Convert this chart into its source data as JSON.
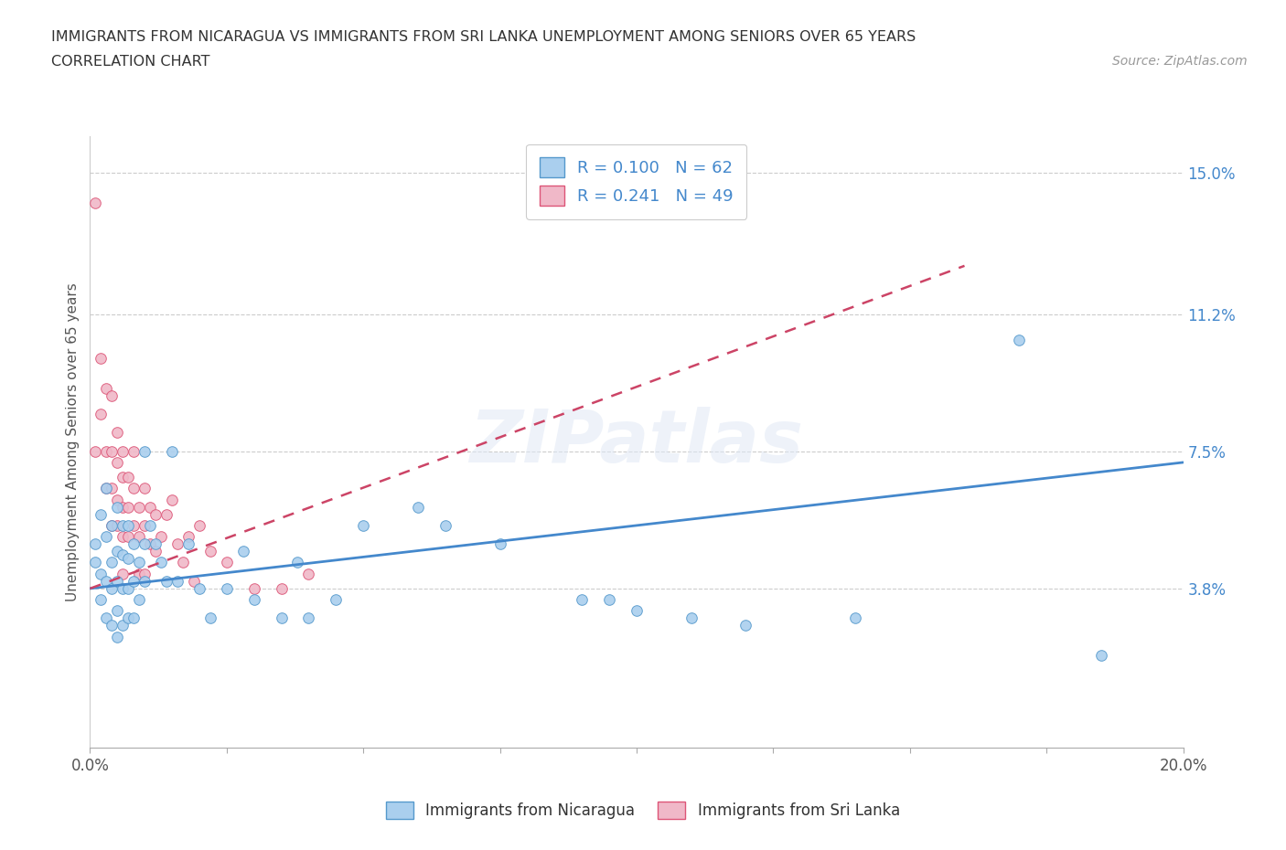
{
  "title_line1": "IMMIGRANTS FROM NICARAGUA VS IMMIGRANTS FROM SRI LANKA UNEMPLOYMENT AMONG SENIORS OVER 65 YEARS",
  "title_line2": "CORRELATION CHART",
  "source_text": "Source: ZipAtlas.com",
  "ylabel": "Unemployment Among Seniors over 65 years",
  "xlim": [
    0.0,
    0.2
  ],
  "ylim": [
    -0.005,
    0.16
  ],
  "yticks": [
    0.0,
    0.038,
    0.075,
    0.112,
    0.15
  ],
  "ytick_labels": [
    "",
    "3.8%",
    "7.5%",
    "11.2%",
    "15.0%"
  ],
  "xticks": [
    0.0,
    0.025,
    0.05,
    0.075,
    0.1,
    0.125,
    0.15,
    0.175,
    0.2
  ],
  "xtick_labels_bottom": [
    "0.0%",
    "",
    "",
    "",
    "",
    "",
    "",
    "",
    "20.0%"
  ],
  "nicaragua_R": 0.1,
  "nicaragua_N": 62,
  "srilanka_R": 0.241,
  "srilanka_N": 49,
  "nicaragua_color": "#aacfee",
  "srilanka_color": "#f0b8c8",
  "nicaragua_edge_color": "#5599cc",
  "srilanka_edge_color": "#dd5577",
  "trendline_color_nicaragua": "#4488cc",
  "trendline_color_srilanka": "#cc4466",
  "watermark_text": "ZIPatlas",
  "legend_label_nicaragua": "Immigrants from Nicaragua",
  "legend_label_srilanka": "Immigrants from Sri Lanka",
  "nicaragua_x": [
    0.001,
    0.001,
    0.002,
    0.002,
    0.002,
    0.003,
    0.003,
    0.003,
    0.003,
    0.004,
    0.004,
    0.004,
    0.004,
    0.005,
    0.005,
    0.005,
    0.005,
    0.005,
    0.006,
    0.006,
    0.006,
    0.006,
    0.007,
    0.007,
    0.007,
    0.007,
    0.008,
    0.008,
    0.008,
    0.009,
    0.009,
    0.01,
    0.01,
    0.01,
    0.011,
    0.012,
    0.013,
    0.014,
    0.015,
    0.016,
    0.018,
    0.02,
    0.022,
    0.025,
    0.028,
    0.03,
    0.035,
    0.038,
    0.04,
    0.045,
    0.05,
    0.06,
    0.065,
    0.075,
    0.09,
    0.095,
    0.1,
    0.11,
    0.12,
    0.14,
    0.17,
    0.185
  ],
  "nicaragua_y": [
    0.05,
    0.045,
    0.058,
    0.042,
    0.035,
    0.065,
    0.052,
    0.04,
    0.03,
    0.055,
    0.045,
    0.038,
    0.028,
    0.06,
    0.048,
    0.04,
    0.032,
    0.025,
    0.055,
    0.047,
    0.038,
    0.028,
    0.055,
    0.046,
    0.038,
    0.03,
    0.05,
    0.04,
    0.03,
    0.045,
    0.035,
    0.075,
    0.05,
    0.04,
    0.055,
    0.05,
    0.045,
    0.04,
    0.075,
    0.04,
    0.05,
    0.038,
    0.03,
    0.038,
    0.048,
    0.035,
    0.03,
    0.045,
    0.03,
    0.035,
    0.055,
    0.06,
    0.055,
    0.05,
    0.035,
    0.035,
    0.032,
    0.03,
    0.028,
    0.03,
    0.105,
    0.02
  ],
  "srilanka_x": [
    0.001,
    0.001,
    0.002,
    0.002,
    0.003,
    0.003,
    0.003,
    0.004,
    0.004,
    0.004,
    0.004,
    0.005,
    0.005,
    0.005,
    0.005,
    0.006,
    0.006,
    0.006,
    0.006,
    0.006,
    0.007,
    0.007,
    0.007,
    0.008,
    0.008,
    0.008,
    0.009,
    0.009,
    0.009,
    0.01,
    0.01,
    0.01,
    0.011,
    0.011,
    0.012,
    0.012,
    0.013,
    0.014,
    0.015,
    0.016,
    0.017,
    0.018,
    0.019,
    0.02,
    0.022,
    0.025,
    0.03,
    0.035,
    0.04
  ],
  "srilanka_y": [
    0.142,
    0.075,
    0.1,
    0.085,
    0.092,
    0.075,
    0.065,
    0.09,
    0.075,
    0.065,
    0.055,
    0.08,
    0.072,
    0.062,
    0.055,
    0.075,
    0.068,
    0.06,
    0.052,
    0.042,
    0.068,
    0.06,
    0.052,
    0.075,
    0.065,
    0.055,
    0.06,
    0.052,
    0.042,
    0.065,
    0.055,
    0.042,
    0.06,
    0.05,
    0.058,
    0.048,
    0.052,
    0.058,
    0.062,
    0.05,
    0.045,
    0.052,
    0.04,
    0.055,
    0.048,
    0.045,
    0.038,
    0.038,
    0.042
  ],
  "trendline_nic_x0": 0.0,
  "trendline_nic_x1": 0.2,
  "trendline_nic_y0": 0.038,
  "trendline_nic_y1": 0.072,
  "trendline_sl_x0": 0.0,
  "trendline_sl_x1": 0.16,
  "trendline_sl_y0": 0.038,
  "trendline_sl_y1": 0.125
}
